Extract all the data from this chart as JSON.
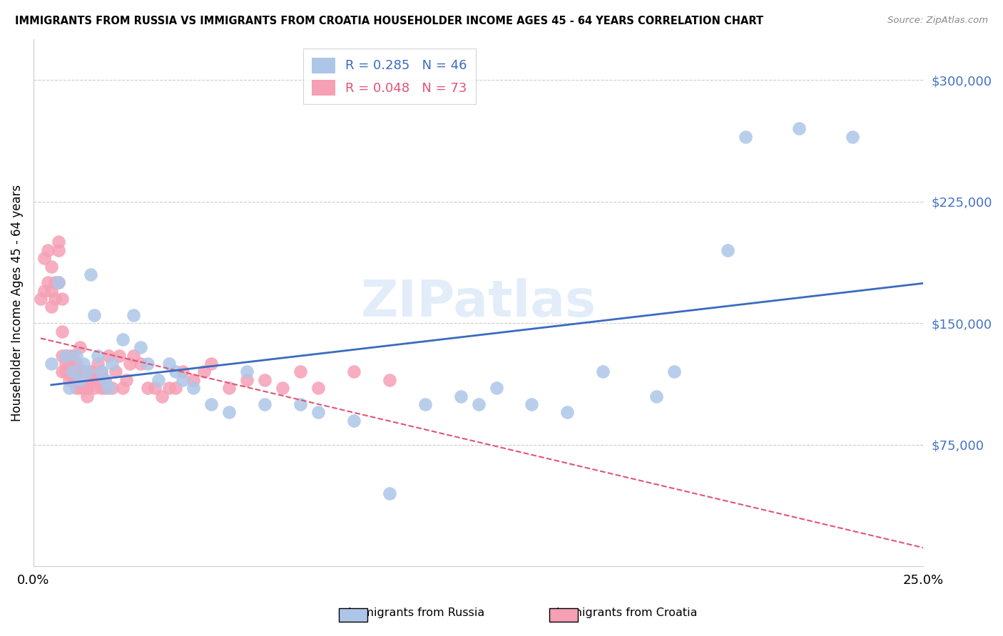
{
  "title": "IMMIGRANTS FROM RUSSIA VS IMMIGRANTS FROM CROATIA HOUSEHOLDER INCOME AGES 45 - 64 YEARS CORRELATION CHART",
  "source": "Source: ZipAtlas.com",
  "ylabel": "Householder Income Ages 45 - 64 years",
  "xlim": [
    0.0,
    0.25
  ],
  "ylim": [
    0,
    325000
  ],
  "yticks": [
    0,
    75000,
    150000,
    225000,
    300000
  ],
  "ytick_labels": [
    "",
    "$75,000",
    "$150,000",
    "$225,000",
    "$300,000"
  ],
  "russia_R": 0.285,
  "russia_N": 46,
  "croatia_R": 0.048,
  "croatia_N": 73,
  "russia_color": "#adc6e8",
  "croatia_color": "#f5a0b5",
  "russia_line_color": "#3a6bbf",
  "croatia_line_color": "#e05575",
  "watermark": "ZIPatlas",
  "russia_scatter_x": [
    0.005,
    0.007,
    0.009,
    0.01,
    0.011,
    0.012,
    0.013,
    0.014,
    0.015,
    0.016,
    0.017,
    0.018,
    0.019,
    0.02,
    0.021,
    0.022,
    0.025,
    0.028,
    0.03,
    0.032,
    0.035,
    0.038,
    0.04,
    0.042,
    0.045,
    0.05,
    0.055,
    0.06,
    0.065,
    0.075,
    0.08,
    0.09,
    0.1,
    0.11,
    0.12,
    0.125,
    0.13,
    0.14,
    0.15,
    0.16,
    0.175,
    0.18,
    0.195,
    0.2,
    0.215,
    0.23
  ],
  "russia_scatter_y": [
    125000,
    175000,
    130000,
    110000,
    120000,
    130000,
    115000,
    125000,
    120000,
    180000,
    155000,
    130000,
    120000,
    115000,
    110000,
    125000,
    140000,
    155000,
    135000,
    125000,
    115000,
    125000,
    120000,
    115000,
    110000,
    100000,
    95000,
    120000,
    100000,
    100000,
    95000,
    90000,
    45000,
    100000,
    105000,
    100000,
    110000,
    100000,
    95000,
    120000,
    105000,
    120000,
    195000,
    265000,
    270000,
    265000
  ],
  "croatia_scatter_x": [
    0.002,
    0.003,
    0.003,
    0.004,
    0.004,
    0.005,
    0.005,
    0.005,
    0.006,
    0.006,
    0.007,
    0.007,
    0.007,
    0.008,
    0.008,
    0.008,
    0.008,
    0.009,
    0.009,
    0.009,
    0.01,
    0.01,
    0.01,
    0.011,
    0.011,
    0.011,
    0.012,
    0.012,
    0.012,
    0.013,
    0.013,
    0.013,
    0.014,
    0.014,
    0.015,
    0.015,
    0.015,
    0.016,
    0.016,
    0.017,
    0.017,
    0.018,
    0.018,
    0.019,
    0.019,
    0.02,
    0.02,
    0.021,
    0.022,
    0.023,
    0.024,
    0.025,
    0.026,
    0.027,
    0.028,
    0.03,
    0.032,
    0.034,
    0.036,
    0.038,
    0.04,
    0.042,
    0.045,
    0.048,
    0.05,
    0.055,
    0.06,
    0.065,
    0.07,
    0.075,
    0.08,
    0.09,
    0.1
  ],
  "croatia_scatter_y": [
    165000,
    170000,
    190000,
    175000,
    195000,
    160000,
    185000,
    170000,
    165000,
    175000,
    200000,
    175000,
    195000,
    165000,
    145000,
    130000,
    120000,
    130000,
    125000,
    120000,
    125000,
    115000,
    130000,
    120000,
    130000,
    115000,
    115000,
    125000,
    110000,
    135000,
    120000,
    110000,
    120000,
    110000,
    120000,
    110000,
    105000,
    115000,
    120000,
    115000,
    110000,
    125000,
    115000,
    120000,
    110000,
    115000,
    110000,
    130000,
    110000,
    120000,
    130000,
    110000,
    115000,
    125000,
    130000,
    125000,
    110000,
    110000,
    105000,
    110000,
    110000,
    120000,
    115000,
    120000,
    125000,
    110000,
    115000,
    115000,
    110000,
    120000,
    110000,
    120000,
    115000
  ]
}
